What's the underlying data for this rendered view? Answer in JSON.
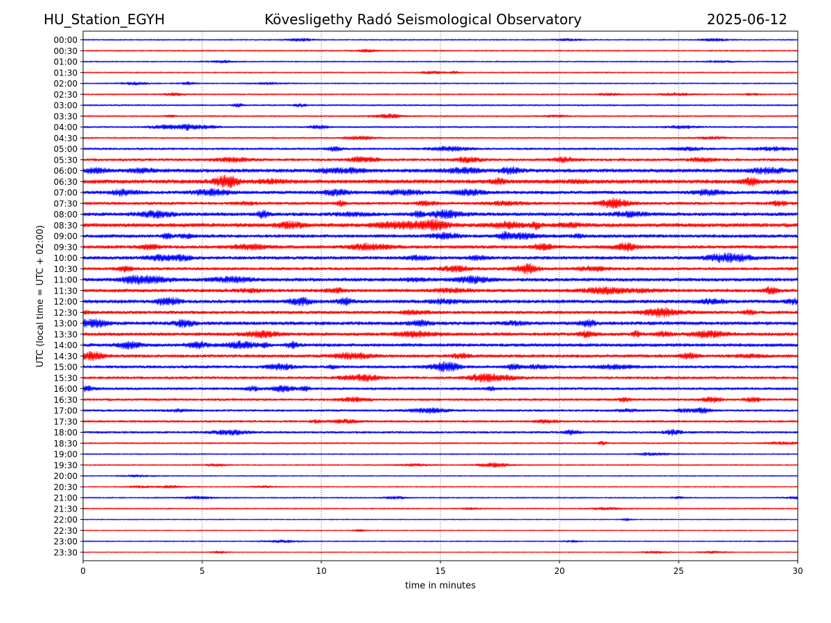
{
  "header": {
    "station": "HU_Station_EGYH",
    "observatory": "Kövesligethy Radó Seismological Observatory",
    "date": "2025-06-12"
  },
  "chart_data": {
    "type": "line",
    "xlabel": "time in minutes",
    "ylabel": "UTC (local time = UTC + 02:00)",
    "xlim": [
      0,
      30
    ],
    "x_ticks": [
      "0",
      "5",
      "10",
      "15",
      "20",
      "25",
      "30"
    ],
    "grid": "vertical dotted at every 5 minutes",
    "colors": {
      "even_rows": "#0000ff",
      "odd_rows": "#ff0000"
    },
    "rows": [
      "00:00",
      "00:30",
      "01:00",
      "01:30",
      "02:00",
      "02:30",
      "03:00",
      "03:30",
      "04:00",
      "04:30",
      "05:00",
      "05:30",
      "06:00",
      "06:30",
      "07:00",
      "07:30",
      "08:00",
      "08:30",
      "09:00",
      "09:30",
      "10:00",
      "10:30",
      "11:00",
      "11:30",
      "12:00",
      "12:30",
      "13:00",
      "13:30",
      "14:00",
      "14:30",
      "15:00",
      "15:30",
      "16:00",
      "16:30",
      "17:00",
      "17:30",
      "18:00",
      "18:30",
      "19:00",
      "19:30",
      "20:00",
      "20:30",
      "21:00",
      "21:30",
      "22:00",
      "22:30",
      "23:00",
      "23:30"
    ],
    "row_noise_level": [
      0.15,
      0.15,
      0.15,
      0.15,
      0.15,
      0.18,
      0.25,
      0.2,
      0.3,
      0.25,
      0.45,
      0.55,
      0.8,
      0.85,
      0.7,
      0.6,
      0.75,
      0.85,
      0.7,
      0.7,
      0.7,
      0.6,
      0.75,
      0.7,
      0.75,
      0.65,
      0.75,
      0.7,
      0.7,
      0.65,
      0.6,
      0.55,
      0.55,
      0.5,
      0.45,
      0.45,
      0.45,
      0.25,
      0.15,
      0.15,
      0.12,
      0.12,
      0.15,
      0.15,
      0.1,
      0.1,
      0.12,
      0.1
    ]
  }
}
